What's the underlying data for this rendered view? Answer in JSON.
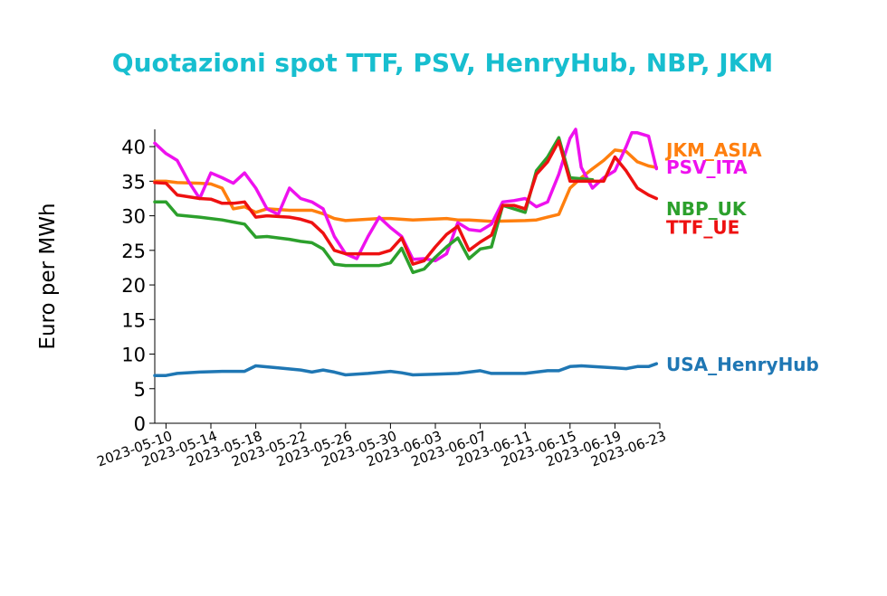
{
  "chart_data": {
    "type": "line",
    "title": "Quotazioni spot TTF, PSV, HenryHub, NBP, JKM",
    "title_color": "#17becf",
    "xlabel": "",
    "ylabel": "Euro per MWh",
    "ylim": [
      0,
      42.5
    ],
    "xlim": [
      "2023-05-09",
      "2023-06-23"
    ],
    "y_ticks": [
      0,
      5,
      10,
      15,
      20,
      25,
      30,
      35,
      40
    ],
    "y_tick_labels": [
      "0",
      "5",
      "10",
      "15",
      "20",
      "25",
      "30",
      "35",
      "40"
    ],
    "x_ticks": [
      "2023-05-10",
      "2023-05-14",
      "2023-05-18",
      "2023-05-22",
      "2023-05-26",
      "2023-05-30",
      "2023-06-03",
      "2023-06-07",
      "2023-06-11",
      "2023-06-15",
      "2023-06-19",
      "2023-06-23"
    ],
    "grid": false,
    "legend": "none (series labelled at right end of lines)",
    "series": [
      {
        "name": "USA_HenryHub",
        "color": "#1f77b4",
        "points": [
          [
            "2023-05-09",
            6.9
          ],
          [
            "2023-05-10",
            6.9
          ],
          [
            "2023-05-11",
            7.2
          ],
          [
            "2023-05-13",
            7.4
          ],
          [
            "2023-05-15",
            7.5
          ],
          [
            "2023-05-17",
            7.5
          ],
          [
            "2023-05-18",
            8.3
          ],
          [
            "2023-05-20",
            8.0
          ],
          [
            "2023-05-22",
            7.7
          ],
          [
            "2023-05-23",
            7.4
          ],
          [
            "2023-05-24",
            7.7
          ],
          [
            "2023-05-25",
            7.4
          ],
          [
            "2023-05-26",
            7.0
          ],
          [
            "2023-05-28",
            7.2
          ],
          [
            "2023-05-30",
            7.5
          ],
          [
            "2023-05-31",
            7.3
          ],
          [
            "2023-06-01",
            7.0
          ],
          [
            "2023-06-03",
            7.1
          ],
          [
            "2023-06-05",
            7.2
          ],
          [
            "2023-06-07",
            7.6
          ],
          [
            "2023-06-08",
            7.2
          ],
          [
            "2023-06-11",
            7.2
          ],
          [
            "2023-06-13",
            7.6
          ],
          [
            "2023-06-14",
            7.6
          ],
          [
            "2023-06-15",
            8.2
          ],
          [
            "2023-06-16",
            8.3
          ],
          [
            "2023-06-19",
            8.0
          ],
          [
            "2023-06-20",
            7.9
          ],
          [
            "2023-06-21",
            8.2
          ],
          [
            "2023-06-22",
            8.2
          ],
          [
            "2023-06-22.7",
            8.6
          ]
        ]
      },
      {
        "name": "JKM_ASIA",
        "color": "#ff7f0e",
        "points": [
          [
            "2023-05-09",
            35.0
          ],
          [
            "2023-05-10",
            35.0
          ],
          [
            "2023-05-11",
            34.8
          ],
          [
            "2023-05-13",
            34.7
          ],
          [
            "2023-05-14",
            34.6
          ],
          [
            "2023-05-15",
            34.0
          ],
          [
            "2023-05-16",
            31.0
          ],
          [
            "2023-05-17",
            31.3
          ],
          [
            "2023-05-18",
            30.5
          ],
          [
            "2023-05-19",
            31.0
          ],
          [
            "2023-05-21",
            30.8
          ],
          [
            "2023-05-23",
            30.8
          ],
          [
            "2023-05-24",
            30.3
          ],
          [
            "2023-05-25",
            29.6
          ],
          [
            "2023-05-26",
            29.3
          ],
          [
            "2023-05-29",
            29.6
          ],
          [
            "2023-05-30",
            29.6
          ],
          [
            "2023-06-01",
            29.4
          ],
          [
            "2023-06-04",
            29.6
          ],
          [
            "2023-06-05",
            29.4
          ],
          [
            "2023-06-06",
            29.4
          ],
          [
            "2023-06-08",
            29.2
          ],
          [
            "2023-06-11",
            29.3
          ],
          [
            "2023-06-12",
            29.4
          ],
          [
            "2023-06-13",
            29.8
          ],
          [
            "2023-06-14",
            30.2
          ],
          [
            "2023-06-15",
            34.0
          ],
          [
            "2023-06-16",
            35.5
          ],
          [
            "2023-06-17",
            36.8
          ],
          [
            "2023-06-18",
            38.0
          ],
          [
            "2023-06-19",
            39.5
          ],
          [
            "2023-06-20",
            39.3
          ],
          [
            "2023-06-21",
            37.8
          ],
          [
            "2023-06-22",
            37.2
          ],
          [
            "2023-06-22.7",
            37.0
          ]
        ]
      },
      {
        "name": "PSV_ITA",
        "color": "#ee11ee",
        "points": [
          [
            "2023-05-09",
            40.5
          ],
          [
            "2023-05-10",
            39.0
          ],
          [
            "2023-05-11",
            38.0
          ],
          [
            "2023-05-12",
            35.0
          ],
          [
            "2023-05-13",
            32.5
          ],
          [
            "2023-05-14",
            36.2
          ],
          [
            "2023-05-15",
            35.5
          ],
          [
            "2023-05-16",
            34.7
          ],
          [
            "2023-05-17",
            36.2
          ],
          [
            "2023-05-18",
            34.0
          ],
          [
            "2023-05-19",
            31.0
          ],
          [
            "2023-05-20",
            30.2
          ],
          [
            "2023-05-21",
            34.0
          ],
          [
            "2023-05-22",
            32.5
          ],
          [
            "2023-05-23",
            32.0
          ],
          [
            "2023-05-24",
            31.0
          ],
          [
            "2023-05-25",
            27.0
          ],
          [
            "2023-05-26",
            24.5
          ],
          [
            "2023-05-27",
            23.8
          ],
          [
            "2023-05-28",
            27.0
          ],
          [
            "2023-05-29",
            29.8
          ],
          [
            "2023-05-30",
            28.3
          ],
          [
            "2023-05-31",
            27.0
          ],
          [
            "2023-06-01",
            23.7
          ],
          [
            "2023-06-02",
            23.8
          ],
          [
            "2023-06-03",
            23.5
          ],
          [
            "2023-06-04",
            24.5
          ],
          [
            "2023-06-05",
            29.0
          ],
          [
            "2023-06-06",
            28.0
          ],
          [
            "2023-06-07",
            27.8
          ],
          [
            "2023-06-08",
            28.8
          ],
          [
            "2023-06-09",
            32.0
          ],
          [
            "2023-06-10",
            32.2
          ],
          [
            "2023-06-11",
            32.5
          ],
          [
            "2023-06-12",
            31.3
          ],
          [
            "2023-06-13",
            32.0
          ],
          [
            "2023-06-14",
            36.0
          ],
          [
            "2023-06-15",
            41.2
          ],
          [
            "2023-06-15.5",
            42.5
          ],
          [
            "2023-06-16",
            37.0
          ],
          [
            "2023-06-17",
            34.0
          ],
          [
            "2023-06-18",
            35.5
          ],
          [
            "2023-06-19",
            36.5
          ],
          [
            "2023-06-20",
            40.0
          ],
          [
            "2023-06-20.5",
            42.0
          ],
          [
            "2023-06-21",
            42.0
          ],
          [
            "2023-06-22",
            41.5
          ],
          [
            "2023-06-22.7",
            36.8
          ]
        ]
      },
      {
        "name": "NBP_UK",
        "color": "#2ca02c",
        "points": [
          [
            "2023-05-09",
            32.0
          ],
          [
            "2023-05-10",
            32.0
          ],
          [
            "2023-05-11",
            30.1
          ],
          [
            "2023-05-13",
            29.8
          ],
          [
            "2023-05-15",
            29.4
          ],
          [
            "2023-05-17",
            28.8
          ],
          [
            "2023-05-18",
            26.9
          ],
          [
            "2023-05-19",
            27.0
          ],
          [
            "2023-05-21",
            26.6
          ],
          [
            "2023-05-22",
            26.3
          ],
          [
            "2023-05-23",
            26.1
          ],
          [
            "2023-05-24",
            25.2
          ],
          [
            "2023-05-25",
            23.0
          ],
          [
            "2023-05-26",
            22.8
          ],
          [
            "2023-05-29",
            22.8
          ],
          [
            "2023-05-30",
            23.2
          ],
          [
            "2023-05-31",
            25.3
          ],
          [
            "2023-06-01",
            21.8
          ],
          [
            "2023-06-02",
            22.3
          ],
          [
            "2023-06-03",
            24.0
          ],
          [
            "2023-06-04",
            25.5
          ],
          [
            "2023-06-05",
            26.8
          ],
          [
            "2023-06-06",
            23.8
          ],
          [
            "2023-06-07",
            25.2
          ],
          [
            "2023-06-08",
            25.5
          ],
          [
            "2023-06-09",
            31.5
          ],
          [
            "2023-06-10",
            31.0
          ],
          [
            "2023-06-11",
            30.5
          ],
          [
            "2023-06-12",
            36.5
          ],
          [
            "2023-06-13",
            38.5
          ],
          [
            "2023-06-14",
            41.3
          ],
          [
            "2023-06-15",
            35.5
          ],
          [
            "2023-06-17",
            35.2
          ]
        ]
      },
      {
        "name": "TTF_UE",
        "color": "#ee1111",
        "points": [
          [
            "2023-05-09",
            34.8
          ],
          [
            "2023-05-10",
            34.7
          ],
          [
            "2023-05-11",
            33.0
          ],
          [
            "2023-05-13",
            32.5
          ],
          [
            "2023-05-14",
            32.4
          ],
          [
            "2023-05-15",
            31.8
          ],
          [
            "2023-05-16",
            31.8
          ],
          [
            "2023-05-17",
            32.0
          ],
          [
            "2023-05-18",
            29.8
          ],
          [
            "2023-05-19",
            30.0
          ],
          [
            "2023-05-21",
            29.8
          ],
          [
            "2023-05-22",
            29.5
          ],
          [
            "2023-05-23",
            29.0
          ],
          [
            "2023-05-24",
            27.5
          ],
          [
            "2023-05-25",
            25.0
          ],
          [
            "2023-05-26",
            24.5
          ],
          [
            "2023-05-29",
            24.5
          ],
          [
            "2023-05-30",
            25.0
          ],
          [
            "2023-05-31",
            26.8
          ],
          [
            "2023-06-01",
            23.0
          ],
          [
            "2023-06-02",
            23.5
          ],
          [
            "2023-06-03",
            25.5
          ],
          [
            "2023-06-04",
            27.3
          ],
          [
            "2023-06-05",
            28.5
          ],
          [
            "2023-06-06",
            25.0
          ],
          [
            "2023-06-07",
            26.2
          ],
          [
            "2023-06-08",
            27.2
          ],
          [
            "2023-06-09",
            31.5
          ],
          [
            "2023-06-10",
            31.5
          ],
          [
            "2023-06-11",
            31.0
          ],
          [
            "2023-06-12",
            36.0
          ],
          [
            "2023-06-13",
            37.8
          ],
          [
            "2023-06-14",
            40.8
          ],
          [
            "2023-06-15",
            35.0
          ],
          [
            "2023-06-16",
            35.0
          ],
          [
            "2023-06-18",
            35.0
          ],
          [
            "2023-06-19",
            38.5
          ],
          [
            "2023-06-20",
            36.5
          ],
          [
            "2023-06-21",
            34.0
          ],
          [
            "2023-06-22",
            33.0
          ],
          [
            "2023-06-22.7",
            32.5
          ]
        ]
      }
    ],
    "series_labels": [
      {
        "series": "JKM_ASIA",
        "text": "JKM_ASIA",
        "y": 39.5
      },
      {
        "series": "PSV_ITA",
        "text": "PSV_ITA",
        "y": 37.0
      },
      {
        "series": "NBP_UK",
        "text": "NBP_UK",
        "y": 31.0
      },
      {
        "series": "TTF_UE",
        "text": "TTF_UE",
        "y": 28.3
      },
      {
        "series": "USA_HenryHub",
        "text": "USA_HenryHub",
        "y": 8.5
      }
    ]
  }
}
